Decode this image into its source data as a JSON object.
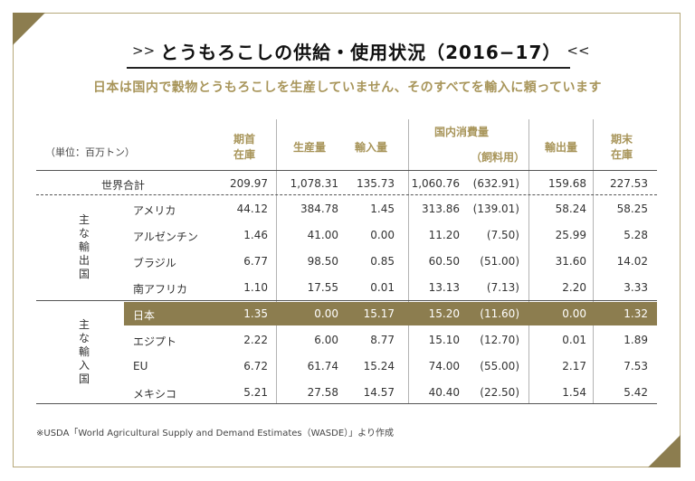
{
  "title": {
    "left_deco": ">>",
    "text": "とうもろこしの供給・使用状況（2016−17）",
    "right_deco": "<<"
  },
  "subtitle": "日本は国内で穀物とうもろこしを生産していません、そのすべてを輸入に頼っています",
  "unit_label": "（単位：百万トン）",
  "headers": {
    "opening_stock": [
      "期首",
      "在庫"
    ],
    "production": "生産量",
    "imports": "輸入量",
    "domestic_use": "国内消費量",
    "feed_use": "（飼料用）",
    "exports": "輸出量",
    "ending_stock": [
      "期末",
      "在庫"
    ]
  },
  "groups": {
    "exporters": [
      "主",
      "な",
      "輸",
      "出",
      "国"
    ],
    "importers": [
      "主",
      "な",
      "輸",
      "入",
      "国"
    ]
  },
  "rows": [
    {
      "name": "世界合計",
      "values": [
        "209.97",
        "1,078.31",
        "135.73",
        "1,060.76",
        "(632.91)",
        "159.68",
        "227.53"
      ]
    },
    {
      "name": "アメリカ",
      "values": [
        "44.12",
        "384.78",
        "1.45",
        "313.86",
        "(139.01)",
        "58.24",
        "58.25"
      ]
    },
    {
      "name": "アルゼンチン",
      "values": [
        "1.46",
        "41.00",
        "0.00",
        "11.20",
        "(7.50)",
        "25.99",
        "5.28"
      ]
    },
    {
      "name": "ブラジル",
      "values": [
        "6.77",
        "98.50",
        "0.85",
        "60.50",
        "(51.00)",
        "31.60",
        "14.02"
      ]
    },
    {
      "name": "南アフリカ",
      "values": [
        "1.10",
        "17.55",
        "0.01",
        "13.13",
        "(7.13)",
        "2.20",
        "3.33"
      ]
    },
    {
      "name": "日本",
      "values": [
        "1.35",
        "0.00",
        "15.17",
        "15.20",
        "(11.60)",
        "0.00",
        "1.32"
      ],
      "highlight": true
    },
    {
      "name": "エジプト",
      "values": [
        "2.22",
        "6.00",
        "8.77",
        "15.10",
        "(12.70)",
        "0.01",
        "1.89"
      ]
    },
    {
      "name": "EU",
      "values": [
        "6.72",
        "61.74",
        "15.24",
        "74.00",
        "(55.00)",
        "2.17",
        "7.53"
      ]
    },
    {
      "name": "メキシコ",
      "values": [
        "5.21",
        "27.58",
        "14.57",
        "40.40",
        "(22.50)",
        "1.54",
        "5.42"
      ]
    }
  ],
  "footnote": "※USDA「World Agricultural Supply and Demand Estimates（WASDE）」より作成",
  "colors": {
    "accent_gold": "#a8955a",
    "highlight_bg": "#8c7d4f",
    "corner": "#8c7d4f"
  }
}
